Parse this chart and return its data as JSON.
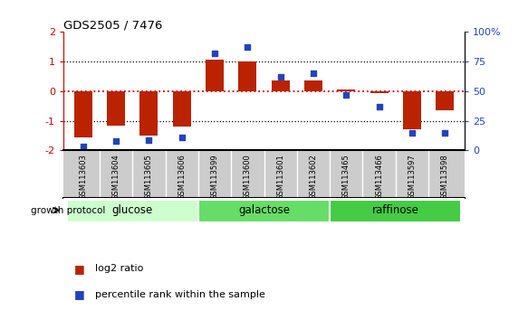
{
  "title": "GDS2505 / 7476",
  "samples": [
    "GSM113603",
    "GSM113604",
    "GSM113605",
    "GSM113606",
    "GSM113599",
    "GSM113600",
    "GSM113601",
    "GSM113602",
    "GSM113465",
    "GSM113466",
    "GSM113597",
    "GSM113598"
  ],
  "log2_ratio": [
    -1.55,
    -1.15,
    -1.5,
    -1.2,
    1.05,
    1.0,
    0.35,
    0.35,
    0.07,
    -0.07,
    -1.3,
    -0.65
  ],
  "percentile_rank": [
    3,
    8,
    9,
    11,
    82,
    87,
    62,
    65,
    47,
    37,
    15,
    15
  ],
  "groups": [
    {
      "label": "glucose",
      "start": 0,
      "end": 4,
      "color": "#ccffcc"
    },
    {
      "label": "galactose",
      "start": 4,
      "end": 8,
      "color": "#66dd66"
    },
    {
      "label": "raffinose",
      "start": 8,
      "end": 12,
      "color": "#44cc44"
    }
  ],
  "ylim": [
    -2,
    2
  ],
  "yticks": [
    -2,
    -1,
    0,
    1,
    2
  ],
  "y2ticks": [
    0,
    25,
    50,
    75,
    100
  ],
  "y2labels": [
    "0",
    "25",
    "50",
    "75",
    "100%"
  ],
  "bar_color": "#bb2200",
  "dot_color": "#2244bb",
  "hline_color": "#cc0000",
  "grid_color": "#000000",
  "bg_color": "#ffffff",
  "sample_bg": "#cccccc",
  "legend_log2": "log2 ratio",
  "legend_pct": "percentile rank within the sample",
  "growth_label": "growth protocol"
}
